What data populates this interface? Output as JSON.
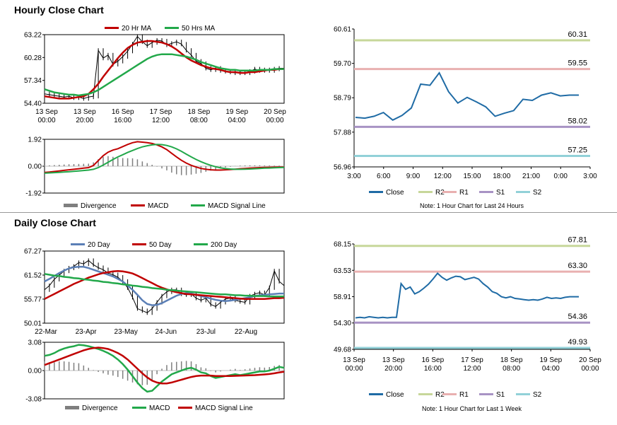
{
  "hourly_title": "Hourly Close Chart",
  "daily_title": "Daily Close Chart",
  "hourly_note": "Note: 1 Hour Chart for Last 24 Hours",
  "daily_note": "Note: 1 Hour Chart for Last 1 Week",
  "colors": {
    "close": "#1f6ba5",
    "ma20": "#c00000",
    "ma50": "#22a84a",
    "d20": "#5b7fb6",
    "d50": "#c00000",
    "d200": "#22a84a",
    "r2": "#c7d79a",
    "r1": "#e9b0b0",
    "s1": "#a893c4",
    "s2": "#92d1d8",
    "grid": "#808080",
    "divergence": "#7f7f7f"
  },
  "chart_data": [
    {
      "id": "hourly-price",
      "type": "line",
      "x_ticks": [
        "13 Sep\n00:00",
        "13 Sep\n20:00",
        "16 Sep\n16:00",
        "17 Sep\n12:00",
        "18 Sep\n08:00",
        "19 Sep\n04:00",
        "20 Sep\n00:00"
      ],
      "y_ticks": [
        "63.22",
        "60.28",
        "57.34",
        "54.40"
      ],
      "ylim": [
        54.4,
        63.22
      ],
      "legend": [
        "20 Hr MA",
        "50 Hrs MA"
      ],
      "series": [
        {
          "name": "Price",
          "values": [
            55.6,
            55.5,
            55.4,
            55.3,
            55.2,
            55.3,
            55.1,
            55.2,
            55.0,
            55.2,
            55.3,
            61.2,
            60.2,
            60.6,
            59.4,
            59.8,
            60.4,
            61.1,
            62.0,
            63.0,
            62.3,
            61.8,
            62.2,
            62.5,
            62.4,
            61.9,
            62.1,
            62.3,
            62.0,
            61.2,
            60.6,
            59.8,
            59.5,
            58.9,
            58.7,
            58.9,
            58.6,
            58.5,
            58.4,
            58.3,
            58.4,
            58.3,
            58.5,
            58.8,
            58.6,
            58.7,
            58.6,
            58.8,
            58.9,
            58.9
          ]
        },
        {
          "name": "20 Hr MA",
          "values": [
            55.3,
            55.2,
            55.1,
            55.0,
            55.0,
            55.0,
            55.1,
            55.2,
            55.3,
            55.6,
            56.2,
            56.9,
            57.8,
            58.6,
            59.4,
            60.2,
            60.9,
            61.5,
            61.9,
            62.2,
            62.3,
            62.4,
            62.4,
            62.3,
            62.2,
            62.0,
            61.7,
            61.3,
            60.8,
            60.3,
            59.9,
            59.6,
            59.3,
            59.1,
            58.9,
            58.8,
            58.7,
            58.5,
            58.4,
            58.4,
            58.3,
            58.3,
            58.4,
            58.4,
            58.5,
            58.6,
            58.7,
            58.7,
            58.8,
            58.8
          ]
        },
        {
          "name": "50 Hrs MA",
          "values": [
            56.2,
            56.0,
            55.8,
            55.7,
            55.6,
            55.5,
            55.5,
            55.4,
            55.5,
            55.6,
            55.8,
            56.1,
            56.5,
            56.9,
            57.3,
            57.7,
            58.1,
            58.5,
            58.9,
            59.3,
            59.7,
            60.1,
            60.4,
            60.6,
            60.7,
            60.7,
            60.7,
            60.6,
            60.5,
            60.4,
            60.2,
            60.0,
            59.7,
            59.5,
            59.3,
            59.1,
            58.9,
            58.8,
            58.7,
            58.7,
            58.6,
            58.6,
            58.6,
            58.6,
            58.7,
            58.7,
            58.7,
            58.8,
            58.8,
            58.8
          ]
        }
      ]
    },
    {
      "id": "hourly-macd",
      "type": "line",
      "y_ticks": [
        "1.92",
        "0.00",
        "-1.92"
      ],
      "ylim": [
        -1.92,
        1.92
      ],
      "legend": [
        "Divergence",
        "MACD",
        "MACD Signal Line"
      ],
      "series": [
        {
          "name": "MACD",
          "values": [
            -0.45,
            -0.42,
            -0.38,
            -0.34,
            -0.3,
            -0.26,
            -0.22,
            -0.18,
            -0.14,
            -0.1,
            0.05,
            0.4,
            0.75,
            1.0,
            1.15,
            1.25,
            1.4,
            1.55,
            1.68,
            1.75,
            1.72,
            1.68,
            1.62,
            1.52,
            1.38,
            1.18,
            0.92,
            0.66,
            0.42,
            0.22,
            0.06,
            -0.06,
            -0.16,
            -0.22,
            -0.26,
            -0.28,
            -0.28,
            -0.26,
            -0.24,
            -0.21,
            -0.18,
            -0.16,
            -0.14,
            -0.12,
            -0.1,
            -0.09,
            -0.08,
            -0.07,
            -0.06,
            -0.06
          ]
        },
        {
          "name": "MACD Signal Line",
          "values": [
            -0.5,
            -0.48,
            -0.46,
            -0.44,
            -0.42,
            -0.4,
            -0.37,
            -0.34,
            -0.31,
            -0.28,
            -0.22,
            -0.1,
            0.08,
            0.28,
            0.48,
            0.66,
            0.82,
            0.98,
            1.12,
            1.26,
            1.38,
            1.46,
            1.52,
            1.55,
            1.54,
            1.48,
            1.38,
            1.24,
            1.06,
            0.86,
            0.66,
            0.48,
            0.32,
            0.18,
            0.06,
            -0.04,
            -0.12,
            -0.17,
            -0.2,
            -0.22,
            -0.22,
            -0.21,
            -0.2,
            -0.18,
            -0.16,
            -0.14,
            -0.13,
            -0.11,
            -0.1,
            -0.09
          ]
        }
      ]
    },
    {
      "id": "hourly-levels",
      "type": "line",
      "x_ticks": [
        "3:00",
        "6:00",
        "9:00",
        "12:00",
        "15:00",
        "18:00",
        "21:00",
        "0:00",
        "3:00"
      ],
      "y_ticks": [
        "60.61",
        "59.70",
        "58.79",
        "57.88",
        "56.96"
      ],
      "ylim": [
        56.96,
        60.61
      ],
      "legend": [
        "Close",
        "R2",
        "R1",
        "S1",
        "S2"
      ],
      "levels": {
        "R2": 60.31,
        "R1": 59.55,
        "S1": 58.02,
        "S2": 57.25
      },
      "level_labels": {
        "R2": "60.31",
        "R1": "59.55",
        "S1": "58.02",
        "S2": "57.25"
      },
      "series": [
        {
          "name": "Close",
          "values": [
            58.27,
            58.25,
            58.3,
            58.4,
            58.2,
            58.32,
            58.52,
            59.15,
            59.12,
            59.45,
            58.95,
            58.65,
            58.8,
            58.68,
            58.55,
            58.3,
            58.38,
            58.45,
            58.75,
            58.72,
            58.86,
            58.92,
            58.84,
            58.86,
            58.86
          ]
        }
      ]
    },
    {
      "id": "daily-price",
      "type": "line",
      "x_ticks": [
        "22-Mar",
        "23-Apr",
        "23-May",
        "24-Jun",
        "23-Jul",
        "22-Aug"
      ],
      "y_ticks": [
        "67.27",
        "61.52",
        "55.77",
        "50.01"
      ],
      "ylim": [
        50.01,
        67.27
      ],
      "legend": [
        "20 Day",
        "50 Day",
        "200 Day"
      ],
      "series": [
        {
          "name": "Price",
          "values": [
            58.0,
            59.0,
            60.5,
            61.5,
            62.5,
            63.2,
            63.6,
            64.5,
            64.2,
            65.0,
            64.0,
            63.3,
            62.8,
            62.0,
            61.6,
            61.0,
            60.0,
            58.5,
            56.2,
            53.5,
            53.0,
            52.5,
            53.5,
            55.0,
            56.5,
            57.5,
            58.0,
            58.0,
            57.0,
            56.8,
            57.0,
            56.0,
            55.5,
            56.0,
            54.5,
            54.0,
            55.0,
            55.8,
            56.0,
            55.5,
            55.2,
            55.0,
            56.5,
            57.0,
            57.3,
            56.8,
            58.5,
            62.5,
            60.0,
            59.0
          ]
        },
        {
          "name": "20 Day",
          "values": [
            60.0,
            60.6,
            61.3,
            62.0,
            62.6,
            63.1,
            63.4,
            63.5,
            63.5,
            63.2,
            62.8,
            62.4,
            62.0,
            61.6,
            61.2,
            60.6,
            60.0,
            59.0,
            58.0,
            56.8,
            55.5,
            54.6,
            54.3,
            54.4,
            54.8,
            55.4,
            56.0,
            56.6,
            57.0,
            57.2,
            57.1,
            56.8,
            56.5,
            56.2,
            55.9,
            55.6,
            55.4,
            55.3,
            55.4,
            55.6,
            55.8,
            56.0,
            56.2,
            56.5,
            56.7,
            56.8,
            56.9,
            57.0,
            57.1,
            57.1
          ]
        },
        {
          "name": "50 Day",
          "values": [
            55.8,
            56.4,
            57.0,
            57.6,
            58.2,
            58.8,
            59.4,
            59.9,
            60.4,
            60.9,
            61.3,
            61.7,
            62.0,
            62.2,
            62.4,
            62.5,
            62.4,
            62.2,
            61.9,
            61.4,
            60.8,
            60.2,
            59.6,
            59.0,
            58.5,
            58.1,
            57.7,
            57.4,
            57.2,
            57.0,
            56.9,
            56.8,
            56.7,
            56.6,
            56.5,
            56.4,
            56.3,
            56.2,
            56.1,
            56.0,
            55.9,
            55.8,
            55.8,
            55.8,
            55.8,
            55.8,
            55.9,
            56.0,
            56.0,
            56.1
          ]
        },
        {
          "name": "200 Day",
          "values": [
            61.8,
            61.6,
            61.4,
            61.3,
            61.1,
            61.0,
            60.8,
            60.7,
            60.5,
            60.4,
            60.2,
            60.1,
            59.9,
            59.8,
            59.6,
            59.5,
            59.3,
            59.2,
            59.0,
            58.9,
            58.7,
            58.6,
            58.4,
            58.3,
            58.2,
            58.0,
            57.9,
            57.8,
            57.7,
            57.6,
            57.5,
            57.4,
            57.3,
            57.2,
            57.1,
            57.0,
            56.9,
            56.9,
            56.8,
            56.7,
            56.7,
            56.6,
            56.6,
            56.5,
            56.5,
            56.5,
            56.4,
            56.4,
            56.4,
            56.4
          ]
        }
      ]
    },
    {
      "id": "daily-macd",
      "type": "line",
      "y_ticks": [
        "3.08",
        "0.00",
        "-3.08"
      ],
      "ylim": [
        -3.08,
        3.08
      ],
      "legend": [
        "Divergence",
        "MACD",
        "MACD Signal Line"
      ],
      "series": [
        {
          "name": "MACD",
          "values": [
            1.6,
            1.7,
            1.9,
            2.2,
            2.4,
            2.55,
            2.65,
            2.8,
            2.75,
            2.65,
            2.5,
            2.35,
            2.15,
            1.9,
            1.6,
            1.2,
            0.7,
            0.1,
            -0.6,
            -1.3,
            -1.9,
            -2.3,
            -2.2,
            -1.7,
            -1.2,
            -0.8,
            -0.4,
            -0.2,
            0.0,
            0.2,
            0.3,
            0.1,
            -0.2,
            -0.3,
            -0.6,
            -0.8,
            -0.7,
            -0.6,
            -0.5,
            -0.4,
            -0.5,
            -0.4,
            -0.3,
            -0.2,
            -0.1,
            -0.1,
            0.0,
            0.2,
            0.4,
            0.3
          ]
        },
        {
          "name": "MACD Signal Line",
          "values": [
            0.6,
            0.8,
            1.0,
            1.2,
            1.4,
            1.6,
            1.8,
            2.0,
            2.2,
            2.35,
            2.45,
            2.5,
            2.45,
            2.35,
            2.15,
            1.9,
            1.6,
            1.2,
            0.7,
            0.2,
            -0.3,
            -0.75,
            -1.1,
            -1.3,
            -1.4,
            -1.4,
            -1.3,
            -1.15,
            -1.0,
            -0.85,
            -0.7,
            -0.6,
            -0.55,
            -0.55,
            -0.55,
            -0.6,
            -0.6,
            -0.6,
            -0.6,
            -0.58,
            -0.56,
            -0.54,
            -0.52,
            -0.5,
            -0.46,
            -0.42,
            -0.38,
            -0.3,
            -0.2,
            -0.12
          ]
        }
      ]
    },
    {
      "id": "daily-levels",
      "type": "line",
      "x_ticks": [
        "13 Sep\n00:00",
        "13 Sep\n20:00",
        "16 Sep\n16:00",
        "17 Sep\n12:00",
        "18 Sep\n08:00",
        "19 Sep\n04:00",
        "20 Sep\n00:00"
      ],
      "y_ticks": [
        "68.15",
        "63.53",
        "58.91",
        "54.30",
        "49.68"
      ],
      "ylim": [
        49.68,
        68.15
      ],
      "legend": [
        "Close",
        "R2",
        "R1",
        "S1",
        "S2"
      ],
      "levels": {
        "R2": 67.81,
        "R1": 63.3,
        "S1": 54.36,
        "S2": 49.93
      },
      "level_labels": {
        "R2": "67.81",
        "R1": "63.30",
        "S1": "54.36",
        "S2": "49.93"
      },
      "series": [
        {
          "name": "Close",
          "values": [
            55.2,
            55.3,
            55.2,
            55.4,
            55.3,
            55.2,
            55.3,
            55.2,
            55.3,
            55.3,
            61.2,
            60.2,
            60.6,
            59.4,
            59.8,
            60.4,
            61.1,
            62.0,
            63.0,
            62.3,
            61.8,
            62.2,
            62.5,
            62.4,
            61.9,
            62.1,
            62.3,
            62.0,
            61.2,
            60.6,
            59.8,
            59.5,
            58.9,
            58.7,
            58.9,
            58.6,
            58.5,
            58.4,
            58.3,
            58.4,
            58.3,
            58.5,
            58.8,
            58.6,
            58.7,
            58.6,
            58.8,
            58.9,
            58.9,
            58.9
          ]
        }
      ]
    }
  ]
}
